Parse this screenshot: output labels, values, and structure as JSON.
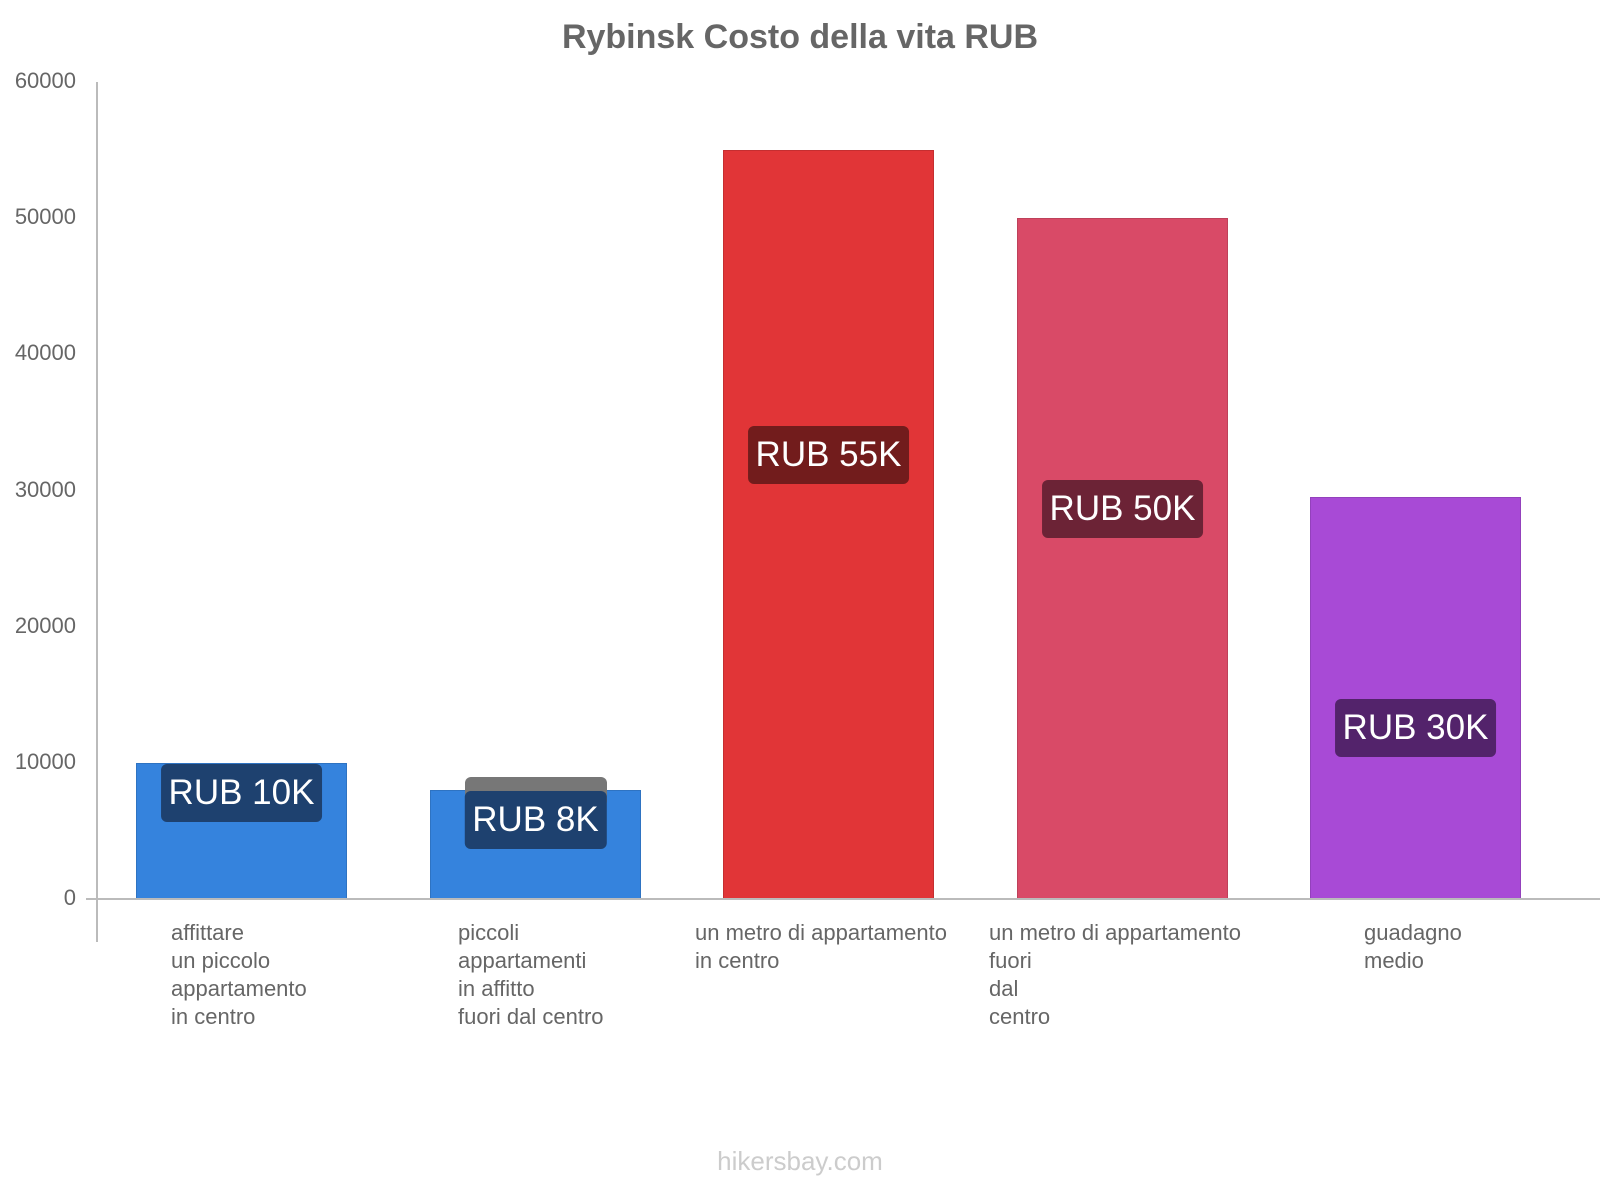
{
  "chart_data": {
    "type": "bar",
    "title": "Rybinsk Costo della vita RUB",
    "xlabel": "",
    "ylabel": "",
    "ylim": [
      0,
      60000
    ],
    "yticks": [
      "0",
      "10000",
      "20000",
      "30000",
      "40000",
      "50000",
      "60000"
    ],
    "grid": false,
    "legend": "none",
    "categories": [
      "affittare un piccolo appartamento in centro",
      "piccoli appartamenti in affitto fuori dal centro",
      "un metro di appartamento in centro",
      "un metro di appartamento fuori dal centro",
      "guadagno medio"
    ],
    "values": [
      10000,
      8000,
      55000,
      50000,
      29500
    ],
    "labels": [
      "RUB 10K",
      "RUB 8K",
      "RUB 55K",
      "RUB 50K",
      "RUB 30K"
    ],
    "colors": [
      "#3583dd",
      "#3583dd",
      "#e13537",
      "#d94a67",
      "#a84ad6"
    ],
    "badge_colors": [
      "#1e416f",
      "#1e416f",
      "#721c1c",
      "#6c2336",
      "#53236b"
    ]
  },
  "xlabels": [
    "affittare\nun piccolo\nappartamento\nin centro",
    "piccoli\nappartamenti\nin affitto\nfuori dal centro",
    "un metro di appartamento\nin centro",
    "un metro di appartamento\nfuori\ndal\ncentro",
    "guadagno\nmedio"
  ],
  "footer": "hikersbay.com"
}
